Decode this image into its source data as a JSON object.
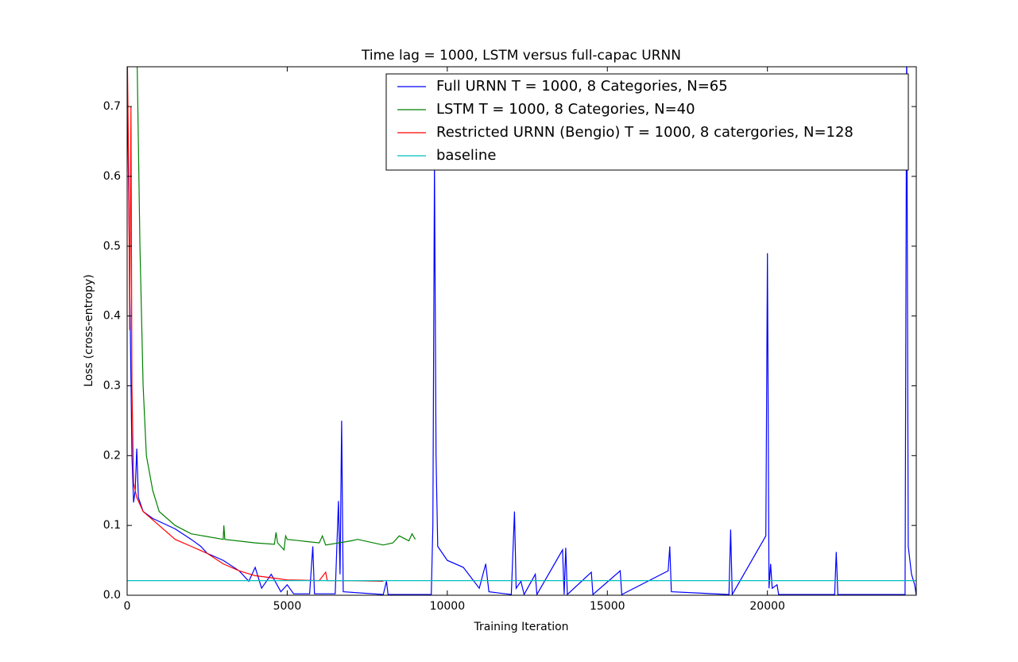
{
  "chart_data": {
    "type": "line",
    "title": "Time lag = 1000, LSTM versus full-capac URNN",
    "x_label": "Training Iteration",
    "y_label": "Loss (cross-entropy)",
    "xlim": [
      0,
      24650
    ],
    "ylim": [
      0,
      0.757
    ],
    "xticks": [
      0,
      5000,
      10000,
      15000,
      20000
    ],
    "yticks": [
      {
        "value": 0,
        "label": "0.0"
      },
      0.1,
      0.2,
      0.3,
      0.4,
      0.5,
      0.6,
      0.7
    ],
    "legend": "upper right",
    "series": [
      {
        "name": "Full URNN T = 1000, 8 Categories, N=65",
        "color": "#0000ff",
        "x": [
          0,
          100,
          150,
          200,
          250,
          300,
          350,
          500,
          800,
          1500,
          2000,
          2300,
          2500,
          3000,
          3500,
          3800,
          4000,
          4200,
          4500,
          4800,
          5000,
          5200,
          5700,
          5800,
          5850,
          6500,
          6600,
          6650,
          6700,
          6750,
          8000,
          8100,
          8150,
          9500,
          9550,
          9600,
          9650,
          9700,
          10000,
          10500,
          11000,
          11200,
          11300,
          12000,
          12100,
          12150,
          12300,
          12400,
          12750,
          12800,
          13600,
          13650,
          13700,
          13750,
          14500,
          14550,
          15400,
          15450,
          16900,
          16950,
          17000,
          18800,
          18850,
          18900,
          19950,
          20000,
          20050,
          20100,
          20150,
          20300,
          20350,
          22100,
          22150,
          22200,
          24300,
          24350,
          24400,
          24500,
          24600,
          24650
        ],
        "values": [
          0.75,
          0.38,
          0.2,
          0.133,
          0.15,
          0.21,
          0.14,
          0.12,
          0.11,
          0.095,
          0.08,
          0.07,
          0.06,
          0.05,
          0.035,
          0.02,
          0.04,
          0.01,
          0.03,
          0.005,
          0.015,
          0.002,
          0.002,
          0.07,
          0.002,
          0.002,
          0.135,
          0.03,
          0.25,
          0.005,
          0.001,
          0.02,
          0.001,
          0.001,
          0.1,
          0.62,
          0.2,
          0.07,
          0.05,
          0.04,
          0.01,
          0.045,
          0.005,
          0.001,
          0.12,
          0.01,
          0.02,
          0.001,
          0.03,
          0.001,
          0.065,
          0.001,
          0.068,
          0.001,
          0.033,
          0.001,
          0.035,
          0.001,
          0.035,
          0.07,
          0.005,
          0.001,
          0.094,
          0.001,
          0.085,
          0.49,
          0.01,
          0.045,
          0.01,
          0.015,
          0.001,
          0.001,
          0.062,
          0.001,
          0.001,
          0.8,
          0.07,
          0.03,
          0.015,
          0
        ]
      },
      {
        "name": "LSTM T = 1000, 8 Categories, N=40",
        "color": "#008000",
        "x": [
          300,
          400,
          500,
          600,
          800,
          1000,
          1500,
          2000,
          3000,
          3020,
          3050,
          4000,
          4600,
          4650,
          4700,
          4900,
          4950,
          5000,
          6000,
          6100,
          6200,
          7000,
          7200,
          8000,
          8300,
          8500,
          8800,
          8900,
          9000
        ],
        "values": [
          0.8,
          0.5,
          0.3,
          0.2,
          0.15,
          0.12,
          0.1,
          0.088,
          0.08,
          0.1,
          0.08,
          0.075,
          0.073,
          0.09,
          0.075,
          0.065,
          0.085,
          0.08,
          0.075,
          0.085,
          0.072,
          0.078,
          0.08,
          0.072,
          0.075,
          0.085,
          0.078,
          0.088,
          0.08
        ]
      },
      {
        "name": "Restricted URNN (Bengio) T = 1000, 8 catergories, N=128",
        "color": "#ff0000",
        "x": [
          0,
          50,
          80,
          120,
          150,
          200,
          300,
          500,
          1000,
          1500,
          2000,
          2500,
          3000,
          3500,
          4000,
          4500,
          5000,
          6000,
          6200,
          6250,
          7000,
          8000
        ],
        "values": [
          0.8,
          0.6,
          0.38,
          0.7,
          0.3,
          0.16,
          0.14,
          0.12,
          0.1,
          0.08,
          0.07,
          0.06,
          0.045,
          0.035,
          0.028,
          0.025,
          0.022,
          0.021,
          0.033,
          0.021,
          0.021,
          0.02
        ]
      },
      {
        "name": "baseline",
        "color": "#00bfbf",
        "x": [
          0,
          24650
        ],
        "values": [
          0.021,
          0.021
        ]
      }
    ]
  }
}
